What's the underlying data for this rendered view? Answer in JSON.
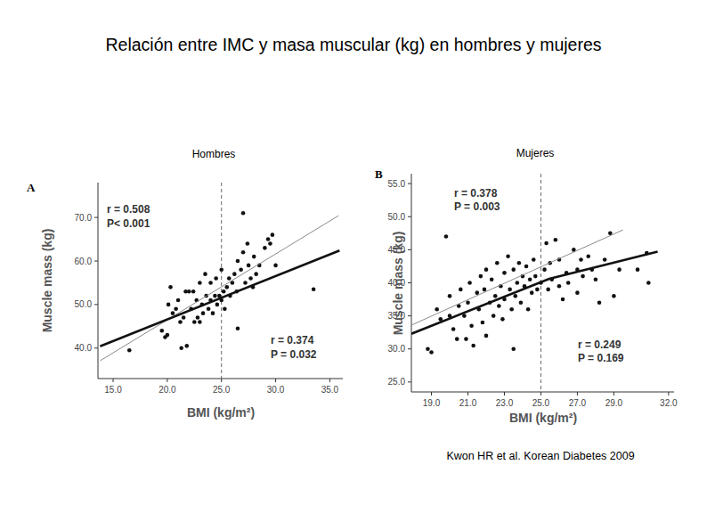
{
  "page_title": "Relación entre IMC y masa muscular (kg) en hombres y mujeres",
  "citation": "Kwon HR et al. Korean Diabetes 2009",
  "chart_data": [
    {
      "type": "scatter",
      "title": "Hombres",
      "panel_label": "A",
      "x_label": "BMI (kg/m²)",
      "y_label": "Muscle mass (kg)",
      "xlim": [
        13.6,
        36.2
      ],
      "ylim": [
        33,
        78
      ],
      "xticks": [
        {
          "value": 15,
          "label": "15.0"
        },
        {
          "value": 20,
          "label": "20.0"
        },
        {
          "value": 25,
          "label": "25.0"
        },
        {
          "value": 30,
          "label": "30.0"
        },
        {
          "value": 35,
          "label": "35.0"
        }
      ],
      "yticks": [
        {
          "value": 40,
          "label": "40.0"
        },
        {
          "value": 50,
          "label": "50.0"
        },
        {
          "value": 60,
          "label": "60.0"
        },
        {
          "value": 70,
          "label": "70.0"
        }
      ],
      "vline": 25,
      "annotations": [
        "r = 0.508",
        "P< 0.001",
        "r = 0.374",
        "P = 0.032"
      ],
      "series": [
        {
          "type": "scatter",
          "marker": "circle",
          "color": "#111111",
          "x": [
            16.5,
            19.5,
            19.8,
            20,
            20.1,
            20.3,
            20.5,
            20.8,
            21,
            21.2,
            21.3,
            21.5,
            21.7,
            21.8,
            22,
            22.2,
            22.4,
            22.5,
            22.7,
            22.8,
            23,
            23,
            23.2,
            23.3,
            23.5,
            23.6,
            23.8,
            24,
            24,
            24.2,
            24.4,
            24.5,
            24.6,
            24.8,
            25,
            25,
            25.2,
            25.3,
            25.5,
            25.7,
            25.8,
            26,
            26.2,
            26.4,
            26.5,
            26.5,
            26.8,
            27,
            27,
            27.2,
            27.4,
            27.5,
            27.7,
            27.9,
            28,
            28.2,
            28.5,
            29,
            29.3,
            29.5,
            29.7,
            30,
            33.5
          ],
          "values": [
            39.5,
            44,
            42.5,
            43,
            50,
            54,
            48,
            49,
            51,
            46,
            40,
            47,
            53,
            40.5,
            53,
            49,
            53,
            46,
            51,
            47,
            46,
            55,
            50,
            48,
            57,
            52,
            49,
            51,
            55,
            48,
            52,
            56,
            50,
            52,
            51,
            58,
            53,
            49,
            54,
            56,
            52,
            55,
            57,
            53,
            60,
            44.5,
            58,
            62,
            71,
            55,
            64,
            59,
            56,
            54,
            61,
            57,
            59,
            63,
            65,
            64,
            66,
            59,
            53.5
          ]
        },
        {
          "type": "line",
          "line_style": "thin",
          "color": "#8a8a8a",
          "x": [
            13.8,
            35.8
          ],
          "values": [
            37.1,
            70.4
          ]
        },
        {
          "type": "line",
          "line_style": "thick",
          "color": "#111111",
          "x": [
            13.8,
            35.9
          ],
          "values": [
            40.4,
            62.4
          ]
        }
      ]
    },
    {
      "type": "scatter",
      "title": "Mujeres",
      "panel_label": "B",
      "x_label": "BMI (kg/m²)",
      "y_label": "Muscle mass (kg)",
      "xlim": [
        17.9,
        32.3
      ],
      "ylim": [
        23.5,
        56.5
      ],
      "xticks": [
        {
          "value": 19,
          "label": "19.0"
        },
        {
          "value": 21,
          "label": "21.0"
        },
        {
          "value": 23,
          "label": "23.0"
        },
        {
          "value": 25,
          "label": "25.0"
        },
        {
          "value": 27,
          "label": "27.0"
        },
        {
          "value": 29,
          "label": "29.0"
        },
        {
          "value": 32,
          "label": "32.0"
        }
      ],
      "yticks": [
        {
          "value": 25,
          "label": "25.0"
        },
        {
          "value": 30,
          "label": "30.0"
        },
        {
          "value": 35,
          "label": "35.0"
        },
        {
          "value": 40,
          "label": "40.0"
        },
        {
          "value": 45,
          "label": "45.0"
        },
        {
          "value": 50,
          "label": "50.0"
        },
        {
          "value": 55,
          "label": "55.0"
        }
      ],
      "vline": 25,
      "annotations": [
        "r = 0.378",
        "P = 0.003",
        "r = 0.249",
        "P = 0.169"
      ],
      "series": [
        {
          "type": "scatter",
          "marker": "circle",
          "color": "#111111",
          "x": [
            18.8,
            19,
            19.3,
            19.5,
            19.8,
            20,
            20,
            20.2,
            20.4,
            20.5,
            20.6,
            20.8,
            20.9,
            21,
            21.1,
            21.2,
            21.3,
            21.5,
            21.6,
            21.7,
            21.8,
            21.9,
            22,
            22,
            22.2,
            22.3,
            22.4,
            22.5,
            22.6,
            22.7,
            22.8,
            22.9,
            23,
            23,
            23.2,
            23.3,
            23.4,
            23.5,
            23.5,
            23.6,
            23.7,
            23.8,
            23.9,
            24,
            24.1,
            24.2,
            24.3,
            24.4,
            24.5,
            24.6,
            24.7,
            24.8,
            25,
            25.2,
            25.3,
            25.4,
            25.5,
            25.6,
            25.8,
            26,
            26,
            26.2,
            26.4,
            26.5,
            26.8,
            27,
            27,
            27.2,
            27.3,
            27.6,
            27.8,
            28,
            28.2,
            28.5,
            28.8,
            29,
            29.3,
            30.3,
            30.8,
            30.9
          ],
          "values": [
            30,
            29.5,
            36,
            34.5,
            47,
            38,
            35,
            33,
            31.5,
            36.5,
            39,
            35,
            31.5,
            37,
            40,
            33.5,
            30.5,
            38.5,
            36,
            41,
            34,
            39,
            42,
            32,
            37,
            40.5,
            35,
            38,
            43,
            36.5,
            39.5,
            34.5,
            41.5,
            37.5,
            44,
            39,
            36,
            42,
            30,
            38,
            40,
            43,
            37,
            41,
            39.5,
            42.5,
            36,
            40.5,
            38.5,
            43.5,
            41,
            39,
            40,
            42,
            46,
            39,
            43,
            40.5,
            46.5,
            39.5,
            43.5,
            37.5,
            41.5,
            40,
            45,
            42,
            38.5,
            43.5,
            41,
            44,
            42,
            40.5,
            37,
            43.5,
            47.5,
            38,
            42,
            42,
            44.5,
            40
          ]
        },
        {
          "type": "line",
          "line_style": "thin",
          "color": "#8a8a8a",
          "x": [
            17.9,
            29.5
          ],
          "values": [
            33.6,
            48.0
          ]
        },
        {
          "type": "line",
          "line_style": "thick",
          "color": "#111111",
          "x": [
            17.9,
            25.46,
            31.4
          ],
          "values": [
            32.3,
            40.6,
            44.7
          ]
        }
      ]
    }
  ]
}
